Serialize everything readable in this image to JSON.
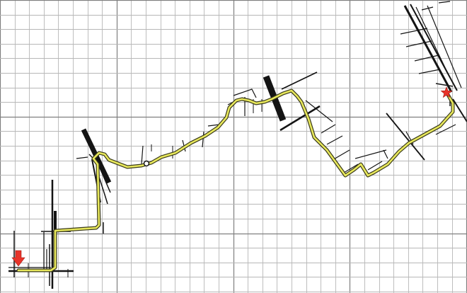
{
  "map": {
    "colors": {
      "background": "#ffffff",
      "grid": "#b7b7b7",
      "grid_major": "#7f7f7f",
      "roads": "#141414",
      "route_fill": "#e8e85c",
      "route_outline": "#3a3a1a",
      "start_marker": "#e8342a",
      "end_marker": "#e8342a"
    },
    "grid": {
      "visible": true
    },
    "icons": {
      "start_marker": "red-arrow-down-icon",
      "end_marker": "red-star-icon"
    }
  }
}
